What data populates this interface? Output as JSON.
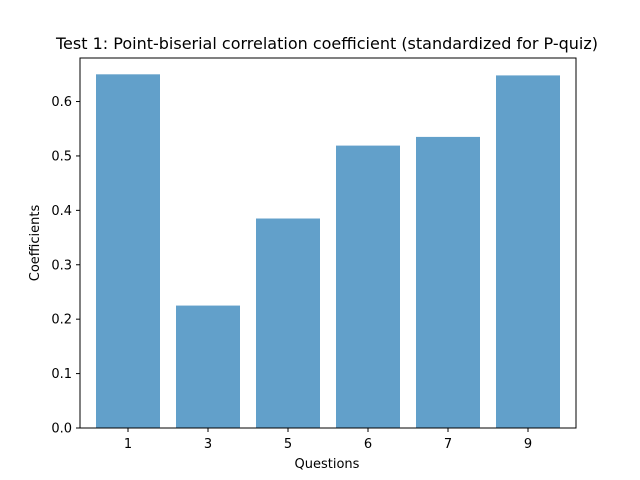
{
  "chart_data": {
    "type": "bar",
    "title": "Test 1: Point-biserial correlation coefficient (standardized for P-quiz)",
    "xlabel": "Questions",
    "ylabel": "Coefficients",
    "categories": [
      "1",
      "3",
      "5",
      "6",
      "7",
      "9"
    ],
    "values": [
      0.65,
      0.225,
      0.385,
      0.519,
      0.535,
      0.648
    ],
    "ylim": [
      0,
      0.68
    ],
    "yticks": [
      "0.0",
      "0.1",
      "0.2",
      "0.3",
      "0.4",
      "0.5",
      "0.6"
    ],
    "grid": false,
    "legend": "none",
    "bar_color": "#1f77b4",
    "bar_opacity": 0.7
  }
}
